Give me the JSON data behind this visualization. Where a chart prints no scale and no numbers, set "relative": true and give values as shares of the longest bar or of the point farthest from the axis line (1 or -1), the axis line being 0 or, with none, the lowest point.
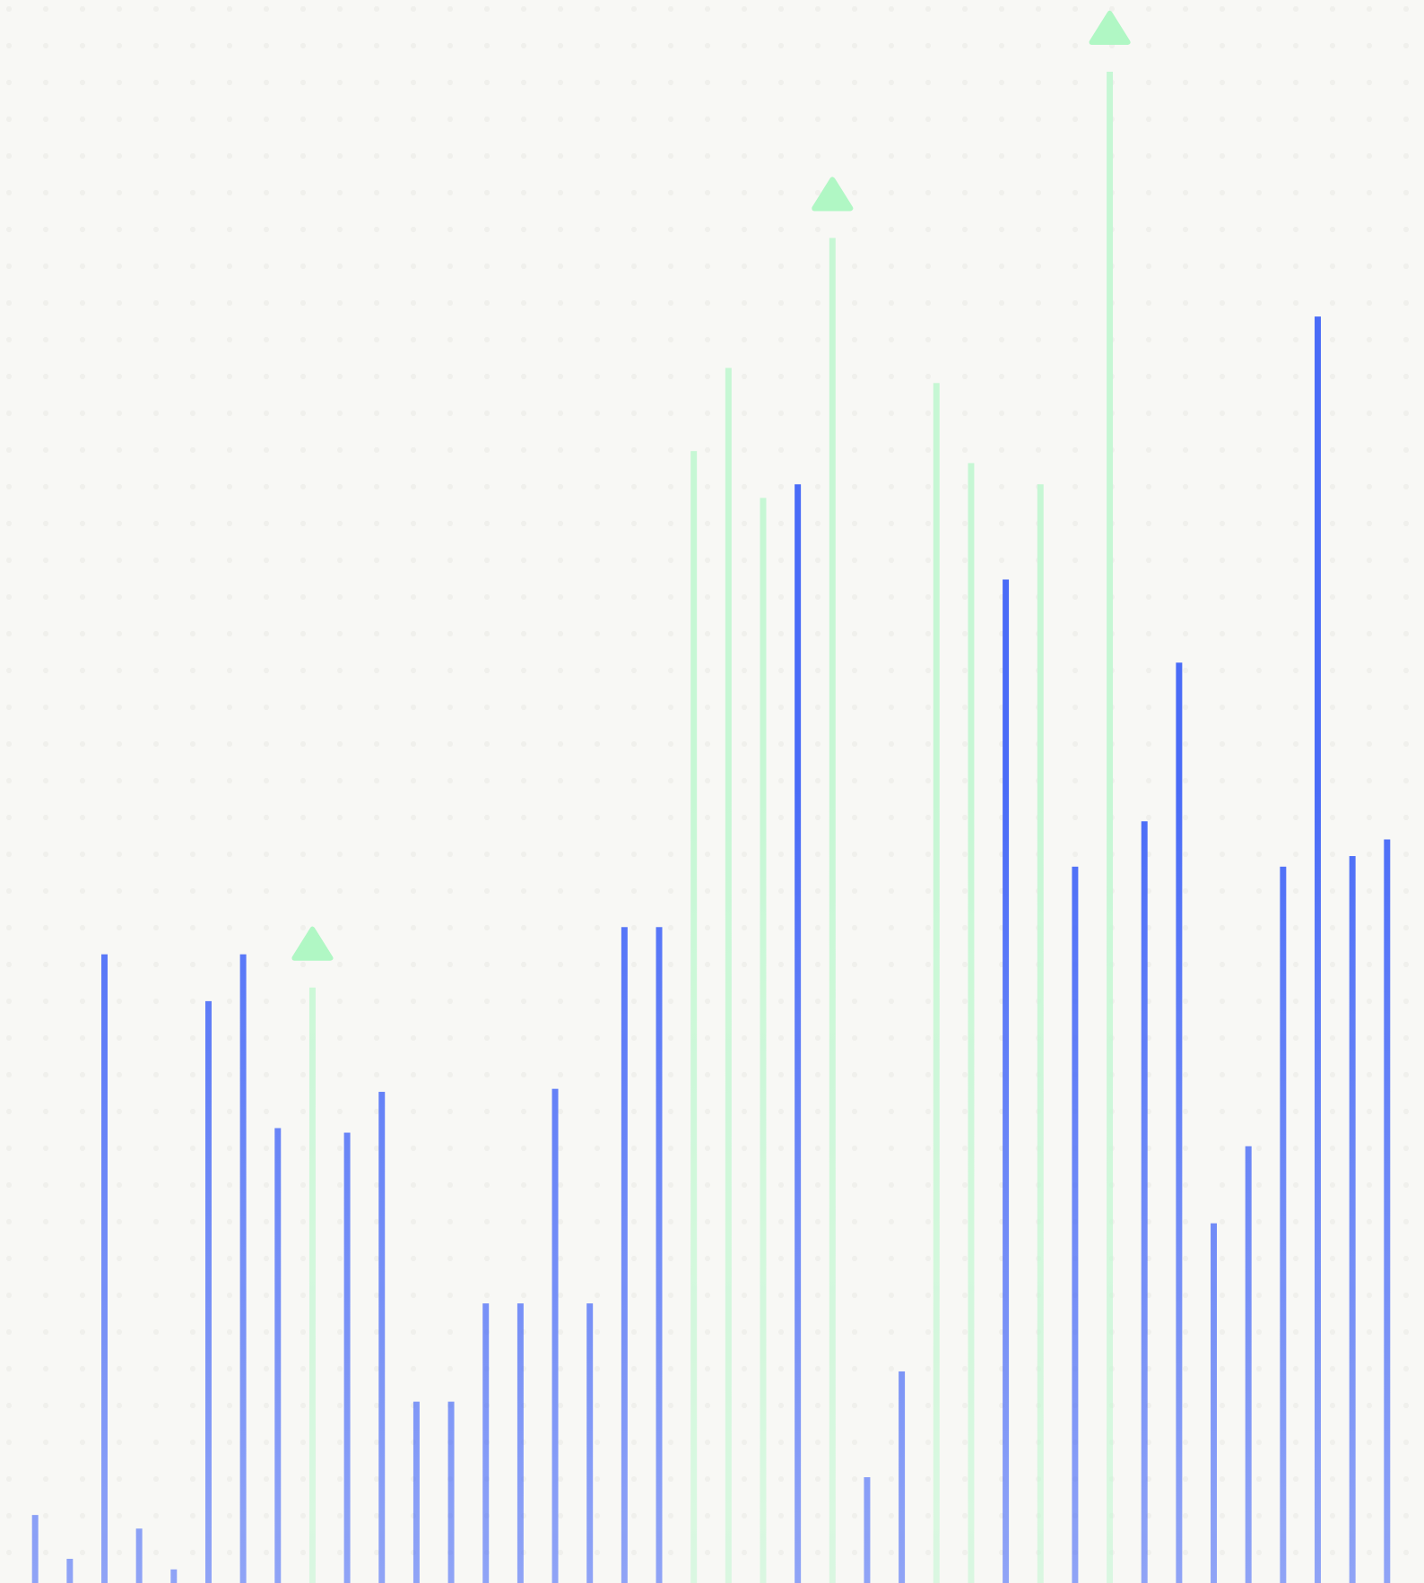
{
  "chart_data": {
    "type": "bar",
    "relative": true,
    "grid": false,
    "categories": [
      null,
      null,
      null,
      null,
      null,
      null,
      null,
      null,
      null,
      null,
      null,
      null,
      null,
      null,
      null,
      null,
      null,
      null,
      null,
      null,
      null,
      null,
      null,
      null,
      null,
      null,
      null,
      null,
      null,
      null,
      null,
      null,
      null,
      null,
      null,
      null,
      null,
      null,
      null,
      null
    ],
    "values": [
      0.045,
      0.016,
      0.416,
      0.036,
      0.009,
      0.385,
      0.416,
      0.301,
      0.394,
      0.298,
      0.325,
      0.12,
      0.12,
      0.185,
      0.185,
      0.327,
      0.185,
      0.434,
      0.434,
      0.749,
      0.804,
      0.718,
      0.727,
      0.89,
      0.07,
      0.14,
      0.794,
      0.741,
      0.664,
      0.727,
      0.474,
      1,
      0.504,
      0.609,
      0.238,
      0.289,
      0.474,
      0.838,
      0.481,
      0.492
    ],
    "colors": [
      "#4a6cf7",
      "#4a6cf7",
      "#4a6cf7",
      "#4a6cf7",
      "#4a6cf7",
      "#4a6cf7",
      "#4a6cf7",
      "#4a6cf7",
      "#c6f7d4",
      "#4a6cf7",
      "#4a6cf7",
      "#4a6cf7",
      "#4a6cf7",
      "#4a6cf7",
      "#4a6cf7",
      "#4a6cf7",
      "#4a6cf7",
      "#4a6cf7",
      "#4a6cf7",
      "#c6f7d4",
      "#c6f7d4",
      "#c6f7d4",
      "#4a6cf7",
      "#c6f7d4",
      "#4a6cf7",
      "#4a6cf7",
      "#c6f7d4",
      "#c6f7d4",
      "#4a6cf7",
      "#c6f7d4",
      "#4a6cf7",
      "#c6f7d4",
      "#4a6cf7",
      "#4a6cf7",
      "#4a6cf7",
      "#4a6cf7",
      "#4a6cf7",
      "#4a6cf7",
      "#4a6cf7",
      "#4a6cf7"
    ]
  }
}
